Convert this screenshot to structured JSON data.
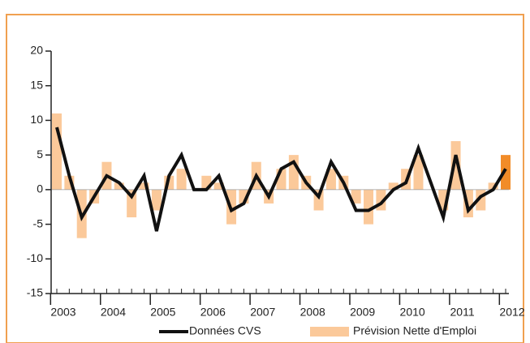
{
  "chart_data": {
    "type": "bar_line",
    "categories": [
      "2003",
      null,
      null,
      null,
      "2004",
      null,
      null,
      null,
      "2005",
      null,
      null,
      null,
      "2006",
      null,
      null,
      null,
      "2007",
      null,
      null,
      null,
      "2008",
      null,
      null,
      null,
      "2009",
      null,
      null,
      null,
      "2010",
      null,
      null,
      null,
      "2011",
      null,
      null,
      null,
      "2012"
    ],
    "series": [
      {
        "name": "Données CVS",
        "type": "line",
        "color": "#111111",
        "values": [
          9,
          2,
          -4,
          -1,
          2,
          1,
          -1,
          2,
          -6,
          2,
          5,
          0,
          0,
          2,
          -3,
          -2,
          2,
          -1,
          3,
          4,
          1,
          -1,
          4,
          1,
          -3,
          -3,
          -2,
          0,
          1,
          6,
          1,
          -4,
          5,
          -3,
          -1,
          0,
          3
        ]
      },
      {
        "name": "Prévision Nette d'Emploi",
        "type": "bar",
        "color": "#fbc99a",
        "highlight_color": "#f28c28",
        "values": [
          11,
          2,
          -7,
          -2,
          4,
          1,
          -4,
          1,
          -3,
          2,
          3,
          0,
          2,
          1,
          -5,
          -2,
          4,
          -2,
          3,
          5,
          2,
          -3,
          3,
          2,
          -2,
          -5,
          -3,
          1,
          3,
          5,
          0,
          -3,
          7,
          -4,
          -3,
          1,
          5
        ]
      }
    ],
    "ylim": [
      -15,
      20
    ],
    "yticks": [
      -15,
      -10,
      -5,
      0,
      5,
      10,
      15,
      20
    ]
  }
}
